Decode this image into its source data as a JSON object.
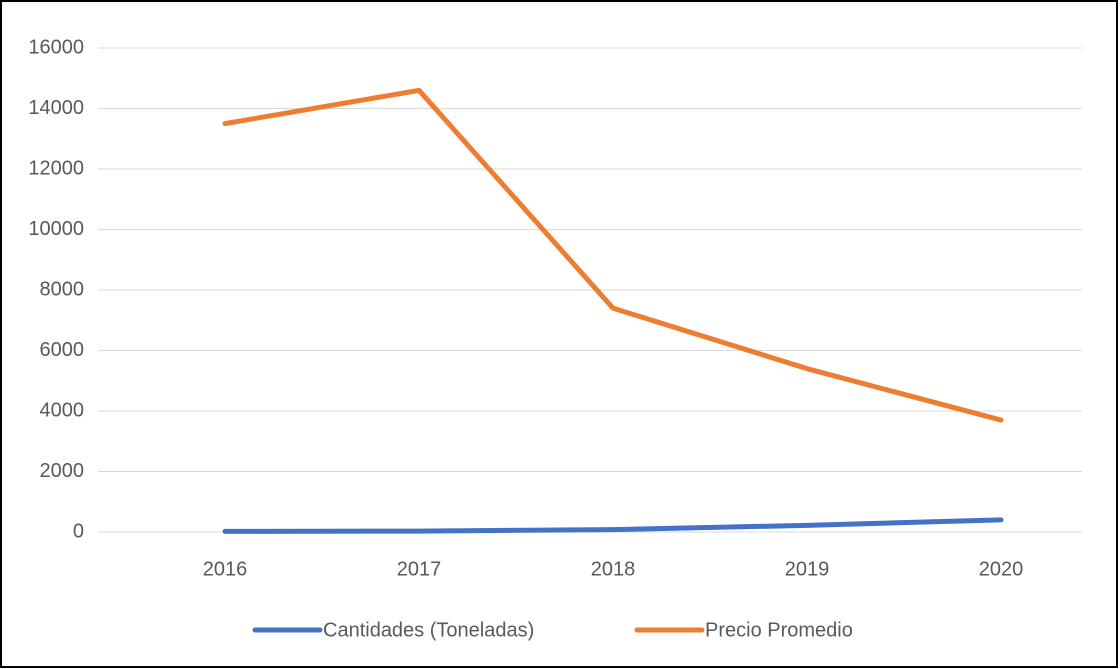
{
  "chart_data": {
    "type": "line",
    "categories": [
      "2016",
      "2017",
      "2018",
      "2019",
      "2020"
    ],
    "series": [
      {
        "name": "Cantidades (Toneladas)",
        "color": "#4472c4",
        "values": [
          20,
          30,
          80,
          220,
          400
        ]
      },
      {
        "name": "Precio Promedio",
        "color": "#ed7d31",
        "values": [
          13500,
          14600,
          7400,
          5400,
          3700
        ]
      }
    ],
    "ylim": [
      0,
      16000
    ],
    "yticks": [
      0,
      2000,
      4000,
      6000,
      8000,
      10000,
      12000,
      14000,
      16000
    ],
    "grid": true,
    "legend": "bottom"
  }
}
